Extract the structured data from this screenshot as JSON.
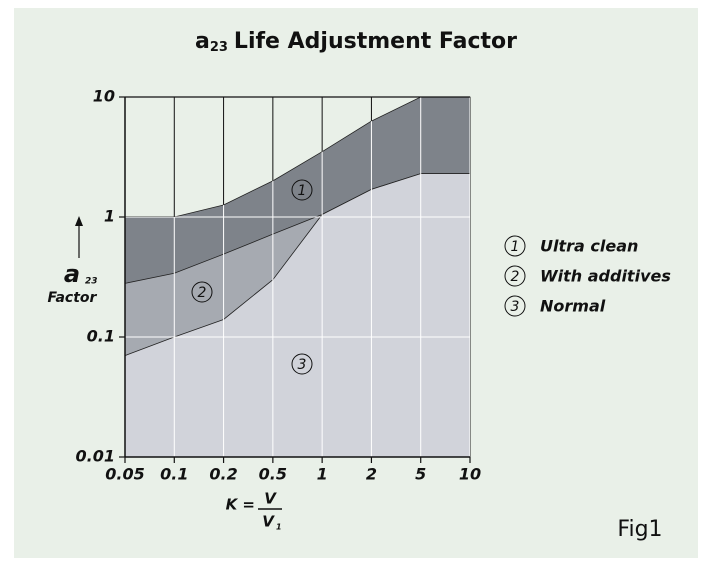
{
  "chart_data": {
    "type": "area",
    "title": {
      "symbol": "a",
      "subscript": "23",
      "text": "Life Adjustment Factor"
    },
    "y_label": {
      "symbol": "a",
      "subscript": "23",
      "text": "Factor"
    },
    "x_label": {
      "lhs": "K =",
      "numerator": "V",
      "denominator": "V",
      "denominator_subscript": "1"
    },
    "note": "Fig1",
    "categories": [
      "0.05",
      "0.1",
      "0.2",
      "0.5",
      "1",
      "2",
      "5",
      "10"
    ],
    "series": [
      {
        "name": "Ultra clean",
        "label": "1",
        "color": "#7e838a",
        "values": [
          1,
          1,
          1.26,
          2.0,
          3.5,
          6.3,
          10,
          10
        ]
      },
      {
        "name": "With additives",
        "label": "2",
        "color": "#a6aab1",
        "values": [
          0.28,
          0.34,
          0.49,
          0.72,
          1.05,
          1.7,
          2.3,
          2.3
        ]
      },
      {
        "name": "Normal",
        "label": "3",
        "color": "#d1d3da",
        "values": [
          0.07,
          0.1,
          0.14,
          0.3,
          1.05,
          1.7,
          2.3,
          2.3
        ]
      }
    ],
    "log_y": true,
    "ylim": [
      0.01,
      10
    ],
    "yticks": [
      0.01,
      0.1,
      1,
      10
    ],
    "grid": true
  }
}
